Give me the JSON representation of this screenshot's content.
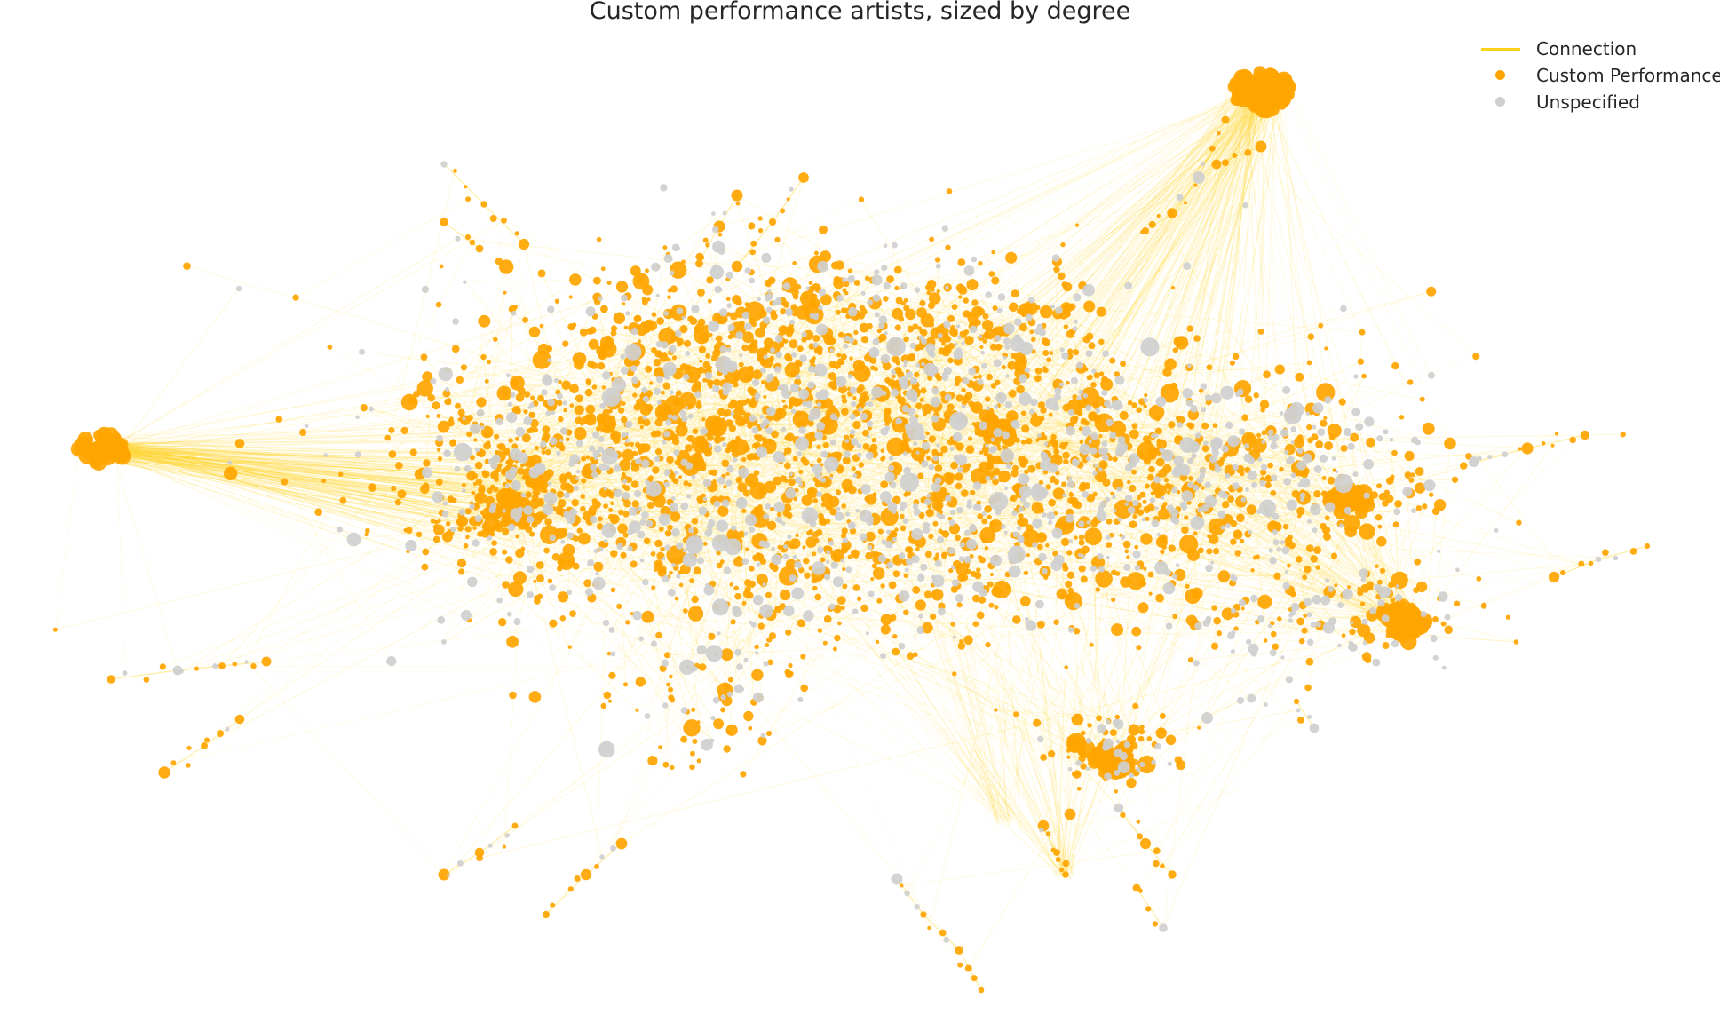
{
  "title": "Custom performance artists, sized by degree",
  "colors": {
    "edge": "#ffd21a",
    "custom_performance": "#ffa500",
    "unspecified": "#cfcfcf",
    "text": "#262626"
  },
  "legend": {
    "placement": "top-right",
    "items": [
      {
        "kind": "line",
        "label": "Connection",
        "color": "#ffd21a"
      },
      {
        "kind": "dot",
        "label": "Custom Performance",
        "color": "#ffa500"
      },
      {
        "kind": "dot",
        "label": "Unspecified",
        "color": "#cfcfcf"
      }
    ]
  },
  "node_categories": [
    "Custom Performance",
    "Unspecified"
  ]
}
